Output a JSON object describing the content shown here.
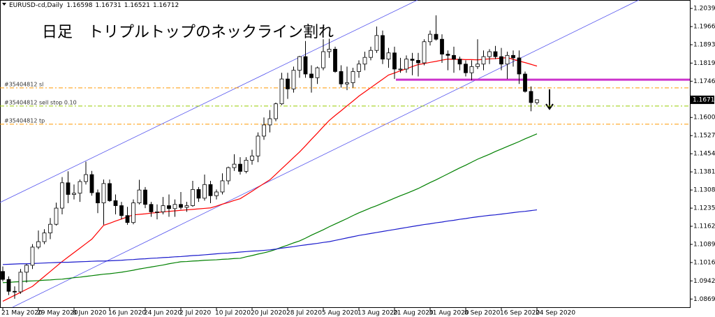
{
  "chart_data": {
    "type": "candlestick",
    "title": "日足　トリプルトップのネックライン割れ",
    "symbol": "EURUSD-cd,Daily",
    "ylim": [
      1.0836,
      1.2073
    ],
    "yticks": [
      {
        "value": 1.2039,
        "label": "1.20390"
      },
      {
        "value": 1.1966,
        "label": "1.19660"
      },
      {
        "value": 1.1893,
        "label": "1.18930"
      },
      {
        "value": 1.1819,
        "label": "1.18190"
      },
      {
        "value": 1.1746,
        "label": "1.17460"
      },
      {
        "value": 1.16,
        "label": "1.16000"
      },
      {
        "value": 1.1527,
        "label": "1.15270"
      },
      {
        "value": 1.1454,
        "label": "1.14540"
      },
      {
        "value": 1.1381,
        "label": "1.13810"
      },
      {
        "value": 1.1308,
        "label": "1.13080"
      },
      {
        "value": 1.1235,
        "label": "1.12350"
      },
      {
        "value": 1.1162,
        "label": "1.11620"
      },
      {
        "value": 1.1089,
        "label": "1.10890"
      },
      {
        "value": 1.1016,
        "label": "1.10160"
      },
      {
        "value": 1.0942,
        "label": "1.09420"
      },
      {
        "value": 1.0869,
        "label": "1.08690"
      }
    ],
    "categories": [
      "21 May 2020",
      null,
      null,
      null,
      null,
      null,
      "29 May 2020",
      null,
      null,
      null,
      null,
      null,
      "8 Jun 2020",
      null,
      null,
      null,
      null,
      null,
      "16 Jun 2020",
      null,
      null,
      null,
      null,
      null,
      "24 Jun 2020",
      null,
      null,
      null,
      null,
      null,
      "2 Jul 2020",
      null,
      null,
      null,
      null,
      null,
      "10 Jul 2020",
      null,
      null,
      null,
      null,
      null,
      "20 Jul 2020",
      null,
      null,
      null,
      null,
      null,
      "28 Jul 2020",
      null,
      null,
      null,
      null,
      null,
      "5 Aug 2020",
      null,
      null,
      null,
      null,
      null,
      "13 Aug 2020",
      null,
      null,
      null,
      null,
      null,
      "21 Aug 2020",
      null,
      null,
      null,
      null,
      null,
      "31 Aug 2020",
      null,
      null,
      null,
      null,
      null,
      "8 Sep 2020",
      null,
      null,
      null,
      null,
      null,
      "16 Sep 2020",
      null,
      null,
      null,
      null,
      null,
      "24 Sep 2020"
    ],
    "ohlc": [
      [
        1.098,
        1.1,
        1.094,
        1.0948
      ],
      [
        1.0948,
        1.096,
        1.0885,
        1.09
      ],
      [
        1.09,
        1.092,
        1.087,
        1.0898
      ],
      [
        1.0898,
        1.099,
        1.089,
        1.0977
      ],
      [
        1.0977,
        1.101,
        1.0935,
        1.1005
      ],
      [
        1.1005,
        1.109,
        1.099,
        1.1078
      ],
      [
        1.1078,
        1.1145,
        1.107,
        1.11
      ],
      [
        1.11,
        1.115,
        1.109,
        1.1135
      ],
      [
        1.1135,
        1.1195,
        1.111,
        1.117
      ],
      [
        1.117,
        1.1257,
        1.1165,
        1.1235
      ],
      [
        1.1235,
        1.136,
        1.121,
        1.1337
      ],
      [
        1.1337,
        1.1383,
        1.1255,
        1.129
      ],
      [
        1.129,
        1.133,
        1.127,
        1.1295
      ],
      [
        1.1295,
        1.135,
        1.126,
        1.1342
      ],
      [
        1.1342,
        1.1422,
        1.133,
        1.137
      ],
      [
        1.137,
        1.1385,
        1.1285,
        1.1297
      ],
      [
        1.1297,
        1.131,
        1.1215,
        1.1256
      ],
      [
        1.1256,
        1.135,
        1.1168,
        1.1334
      ],
      [
        1.1334,
        1.135,
        1.126,
        1.1265
      ],
      [
        1.1265,
        1.129,
        1.121,
        1.1245
      ],
      [
        1.1245,
        1.126,
        1.119,
        1.1205
      ],
      [
        1.1205,
        1.124,
        1.1168,
        1.1177
      ],
      [
        1.1177,
        1.127,
        1.117,
        1.1256
      ],
      [
        1.1256,
        1.1349,
        1.125,
        1.1308
      ],
      [
        1.1308,
        1.132,
        1.1235,
        1.125
      ],
      [
        1.125,
        1.126,
        1.12,
        1.122
      ],
      [
        1.122,
        1.125,
        1.119,
        1.122
      ],
      [
        1.122,
        1.128,
        1.121,
        1.1245
      ],
      [
        1.1245,
        1.129,
        1.12,
        1.1233
      ],
      [
        1.1233,
        1.127,
        1.12,
        1.125
      ],
      [
        1.125,
        1.13,
        1.123,
        1.1238
      ],
      [
        1.1238,
        1.126,
        1.122,
        1.1245
      ],
      [
        1.1245,
        1.1345,
        1.124,
        1.131
      ],
      [
        1.131,
        1.132,
        1.126,
        1.1275
      ],
      [
        1.1275,
        1.137,
        1.1265,
        1.133
      ],
      [
        1.133,
        1.1345,
        1.1255,
        1.1285
      ],
      [
        1.1285,
        1.131,
        1.127,
        1.13
      ],
      [
        1.13,
        1.1375,
        1.129,
        1.1345
      ],
      [
        1.1345,
        1.1402,
        1.133,
        1.1398
      ],
      [
        1.1398,
        1.1452,
        1.1385,
        1.1412
      ],
      [
        1.1412,
        1.144,
        1.137,
        1.1383
      ],
      [
        1.1383,
        1.144,
        1.1375,
        1.1428
      ],
      [
        1.1428,
        1.147,
        1.141,
        1.1445
      ],
      [
        1.1445,
        1.154,
        1.142,
        1.1525
      ],
      [
        1.1525,
        1.16,
        1.151,
        1.157
      ],
      [
        1.157,
        1.163,
        1.154,
        1.1595
      ],
      [
        1.1595,
        1.166,
        1.1585,
        1.1655
      ],
      [
        1.1655,
        1.178,
        1.165,
        1.1755
      ],
      [
        1.1755,
        1.178,
        1.1675,
        1.1715
      ],
      [
        1.1715,
        1.1805,
        1.17,
        1.179
      ],
      [
        1.179,
        1.1848,
        1.176,
        1.1845
      ],
      [
        1.1845,
        1.1908,
        1.176,
        1.1775
      ],
      [
        1.1775,
        1.181,
        1.17,
        1.176
      ],
      [
        1.176,
        1.1805,
        1.1735,
        1.18
      ],
      [
        1.18,
        1.1915,
        1.179,
        1.1865
      ],
      [
        1.1865,
        1.1917,
        1.184,
        1.1875
      ],
      [
        1.1875,
        1.1885,
        1.178,
        1.1785
      ],
      [
        1.1785,
        1.181,
        1.172,
        1.1735
      ],
      [
        1.1735,
        1.1805,
        1.171,
        1.174
      ],
      [
        1.174,
        1.18,
        1.172,
        1.1785
      ],
      [
        1.1785,
        1.183,
        1.176,
        1.1815
      ],
      [
        1.1815,
        1.1865,
        1.179,
        1.1842
      ],
      [
        1.1842,
        1.1885,
        1.183,
        1.187
      ],
      [
        1.187,
        1.1966,
        1.186,
        1.193
      ],
      [
        1.193,
        1.195,
        1.1815,
        1.1835
      ],
      [
        1.1835,
        1.188,
        1.18,
        1.186
      ],
      [
        1.186,
        1.1885,
        1.1755,
        1.1795
      ],
      [
        1.1795,
        1.184,
        1.178,
        1.1795
      ],
      [
        1.1795,
        1.185,
        1.178,
        1.1835
      ],
      [
        1.1835,
        1.186,
        1.177,
        1.183
      ],
      [
        1.183,
        1.186,
        1.1765,
        1.182
      ],
      [
        1.182,
        1.1915,
        1.181,
        1.1905
      ],
      [
        1.1905,
        1.195,
        1.189,
        1.1935
      ],
      [
        1.1935,
        1.2011,
        1.191,
        1.1915
      ],
      [
        1.1915,
        1.1935,
        1.182,
        1.1855
      ],
      [
        1.1855,
        1.187,
        1.179,
        1.185
      ],
      [
        1.185,
        1.1885,
        1.178,
        1.1835
      ],
      [
        1.1835,
        1.1845,
        1.179,
        1.1815
      ],
      [
        1.1815,
        1.183,
        1.1765,
        1.178
      ],
      [
        1.178,
        1.183,
        1.175,
        1.1805
      ],
      [
        1.1805,
        1.1915,
        1.1795,
        1.1815
      ],
      [
        1.1815,
        1.187,
        1.179,
        1.1845
      ],
      [
        1.1845,
        1.1875,
        1.1815,
        1.1865
      ],
      [
        1.1865,
        1.1888,
        1.1835,
        1.1845
      ],
      [
        1.1845,
        1.188,
        1.179,
        1.1815
      ],
      [
        1.1815,
        1.1865,
        1.1755,
        1.185
      ],
      [
        1.185,
        1.187,
        1.1805,
        1.184
      ],
      [
        1.184,
        1.187,
        1.1735,
        1.1775
      ],
      [
        1.1775,
        1.1785,
        1.17,
        1.1705
      ],
      [
        1.1705,
        1.1725,
        1.1625,
        1.166
      ],
      [
        1.16598,
        1.16731,
        1.16521,
        1.16712
      ]
    ],
    "series": [
      {
        "color": "#ff0000",
        "values": [
          1.086,
          1.0872,
          1.0884,
          1.0896,
          1.0908,
          1.092,
          1.094,
          1.096,
          1.098,
          1.1,
          1.102,
          1.1038,
          1.1056,
          1.1074,
          1.1092,
          1.111,
          1.1138,
          1.1166,
          1.1174,
          1.1183,
          1.1191,
          1.12,
          1.1208,
          1.121,
          1.1212,
          1.1215,
          1.1217,
          1.122,
          1.1222,
          1.1224,
          1.1226,
          1.1228,
          1.123,
          1.1232,
          1.1234,
          1.1236,
          1.1243,
          1.1251,
          1.1258,
          1.1266,
          1.1273,
          1.1288,
          1.1303,
          1.1319,
          1.1334,
          1.1349,
          1.1371,
          1.1394,
          1.1416,
          1.1439,
          1.1461,
          1.1486,
          1.1512,
          1.1537,
          1.1563,
          1.1588,
          1.1608,
          1.1627,
          1.1647,
          1.1666,
          1.1686,
          1.1703,
          1.172,
          1.1737,
          1.1754,
          1.1771,
          1.1779,
          1.1788,
          1.1796,
          1.1805,
          1.1813,
          1.1817,
          1.1822,
          1.1826,
          1.1831,
          1.1835,
          1.1834,
          1.1834,
          1.1833,
          1.1833,
          1.1832,
          1.1834,
          1.1836,
          1.1837,
          1.1839,
          1.1841,
          1.1834,
          1.1827,
          1.1821,
          1.1814,
          1.1807
        ]
      },
      {
        "color": "#008000",
        "values": [
          1.0935,
          1.0936,
          1.0938,
          1.0939,
          1.0941,
          1.0942,
          1.0943,
          1.0945,
          1.0946,
          1.0948,
          1.0949,
          1.0952,
          1.0955,
          1.0957,
          1.096,
          1.0963,
          1.0966,
          1.0969,
          1.0971,
          1.0974,
          1.0977,
          1.0981,
          1.0985,
          1.099,
          1.0994,
          1.0998,
          1.1002,
          1.1006,
          1.1011,
          1.1015,
          1.1019,
          1.102,
          1.1022,
          1.1023,
          1.1025,
          1.1026,
          1.1027,
          1.1029,
          1.103,
          1.1032,
          1.1033,
          1.1039,
          1.1044,
          1.105,
          1.1055,
          1.1061,
          1.1069,
          1.1078,
          1.1086,
          1.1095,
          1.1103,
          1.1114,
          1.1126,
          1.1137,
          1.1148,
          1.116,
          1.1171,
          1.1182,
          1.1193,
          1.1205,
          1.1216,
          1.1226,
          1.1236,
          1.1245,
          1.1255,
          1.1265,
          1.1275,
          1.1285,
          1.1294,
          1.1304,
          1.1314,
          1.1326,
          1.1338,
          1.1349,
          1.1361,
          1.1373,
          1.1385,
          1.1397,
          1.1408,
          1.142,
          1.1432,
          1.1442,
          1.1452,
          1.1463,
          1.1473,
          1.1483,
          1.1493,
          1.1503,
          1.1514,
          1.1524,
          1.1534
        ]
      },
      {
        "color": "#1a1acc",
        "values": [
          1.1008,
          1.1009,
          1.101,
          1.1011,
          1.1011,
          1.1012,
          1.1013,
          1.1014,
          1.1015,
          1.1016,
          1.1017,
          1.1017,
          1.1018,
          1.1019,
          1.102,
          1.1021,
          1.1022,
          1.1022,
          1.1023,
          1.1024,
          1.1025,
          1.1027,
          1.1028,
          1.103,
          1.1031,
          1.1033,
          1.1034,
          1.1036,
          1.1037,
          1.1039,
          1.104,
          1.1042,
          1.1044,
          1.1045,
          1.1047,
          1.1049,
          1.1051,
          1.1053,
          1.1054,
          1.1056,
          1.1058,
          1.106,
          1.1062,
          1.1063,
          1.1065,
          1.1067,
          1.107,
          1.1074,
          1.1077,
          1.108,
          1.1084,
          1.1087,
          1.109,
          1.1093,
          1.1097,
          1.11,
          1.1105,
          1.111,
          1.1115,
          1.112,
          1.1125,
          1.1129,
          1.1133,
          1.1137,
          1.1141,
          1.1145,
          1.1149,
          1.1153,
          1.1157,
          1.1161,
          1.1165,
          1.1169,
          1.1172,
          1.1176,
          1.1179,
          1.1183,
          1.1186,
          1.119,
          1.1193,
          1.1197,
          1.12,
          1.1203,
          1.1206,
          1.1208,
          1.1211,
          1.1214,
          1.1217,
          1.122,
          1.1222,
          1.1225,
          1.1228
        ]
      }
    ],
    "levels": [
      {
        "label": "#35404812 sl",
        "value": 1.1719,
        "color": "#ff9900"
      },
      {
        "label": "#35404812 sell stop 0.10",
        "value": 1.1646,
        "color": "#99cc00"
      },
      {
        "label": "#35404812 tp",
        "value": 1.1573,
        "color": "#ff9900"
      }
    ],
    "neckline": {
      "value": 1.1752,
      "color": "#cc33cc"
    }
  }
}
